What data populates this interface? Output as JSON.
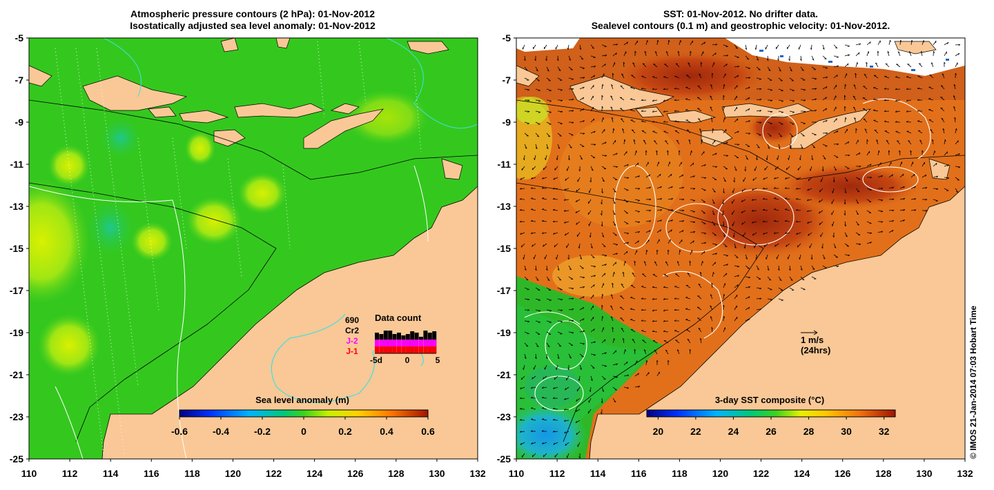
{
  "left_panel": {
    "title_line1": "Atmospheric pressure contours (2 hPa): 01-Nov-2012",
    "title_line2": "Isostatically adjusted sea level anomaly: 01-Nov-2012",
    "colorbar": {
      "label": "Sea level anomaly (m)",
      "ticks": [
        "-0.6",
        "-0.4",
        "-0.2",
        "0",
        "0.2",
        "0.4",
        "0.6"
      ],
      "range": [
        -0.6,
        0.6
      ]
    },
    "data_count": {
      "title": "Data count",
      "mission_labels": [
        {
          "text": "690",
          "color": "#000000"
        },
        {
          "text": "Cr2",
          "color": "#000000"
        },
        {
          "text": "J-2",
          "color": "#ff00ff"
        },
        {
          "text": "J-1",
          "color": "#ff0000"
        }
      ],
      "axis_ticks": [
        "-5d",
        "0",
        "5"
      ]
    }
  },
  "right_panel": {
    "title_line1": "SST: 01-Nov-2012. No drifter data.",
    "title_line2": "Sealevel contours (0.1 m) and geostrophic velocity: 01-Nov-2012.",
    "colorbar": {
      "label": "3-day SST composite (°C)",
      "ticks": [
        "20",
        "22",
        "24",
        "26",
        "28",
        "30",
        "32"
      ],
      "range": [
        19.4,
        32.6
      ]
    },
    "velocity_scale": {
      "label1": "1 m/s",
      "label2": "(24hrs)"
    }
  },
  "axes": {
    "x_ticks": [
      "110",
      "112",
      "114",
      "116",
      "118",
      "120",
      "122",
      "124",
      "126",
      "128",
      "130",
      "132"
    ],
    "y_ticks": [
      "-5",
      "-7",
      "-9",
      "-11",
      "-13",
      "-15",
      "-17",
      "-19",
      "-21",
      "-23",
      "-25"
    ],
    "x_range": [
      110,
      132
    ],
    "y_range": [
      -25,
      -5
    ]
  },
  "credit": "© IMOS 21-Jan-2014 07:03 Hobart Time",
  "colors": {
    "land": "#f9c896",
    "ocean_green": "#34c81e",
    "sst_warm": "#e2701a",
    "sst_hot": "#b4320f",
    "sst_cool_blue": "#1ea0dc"
  }
}
